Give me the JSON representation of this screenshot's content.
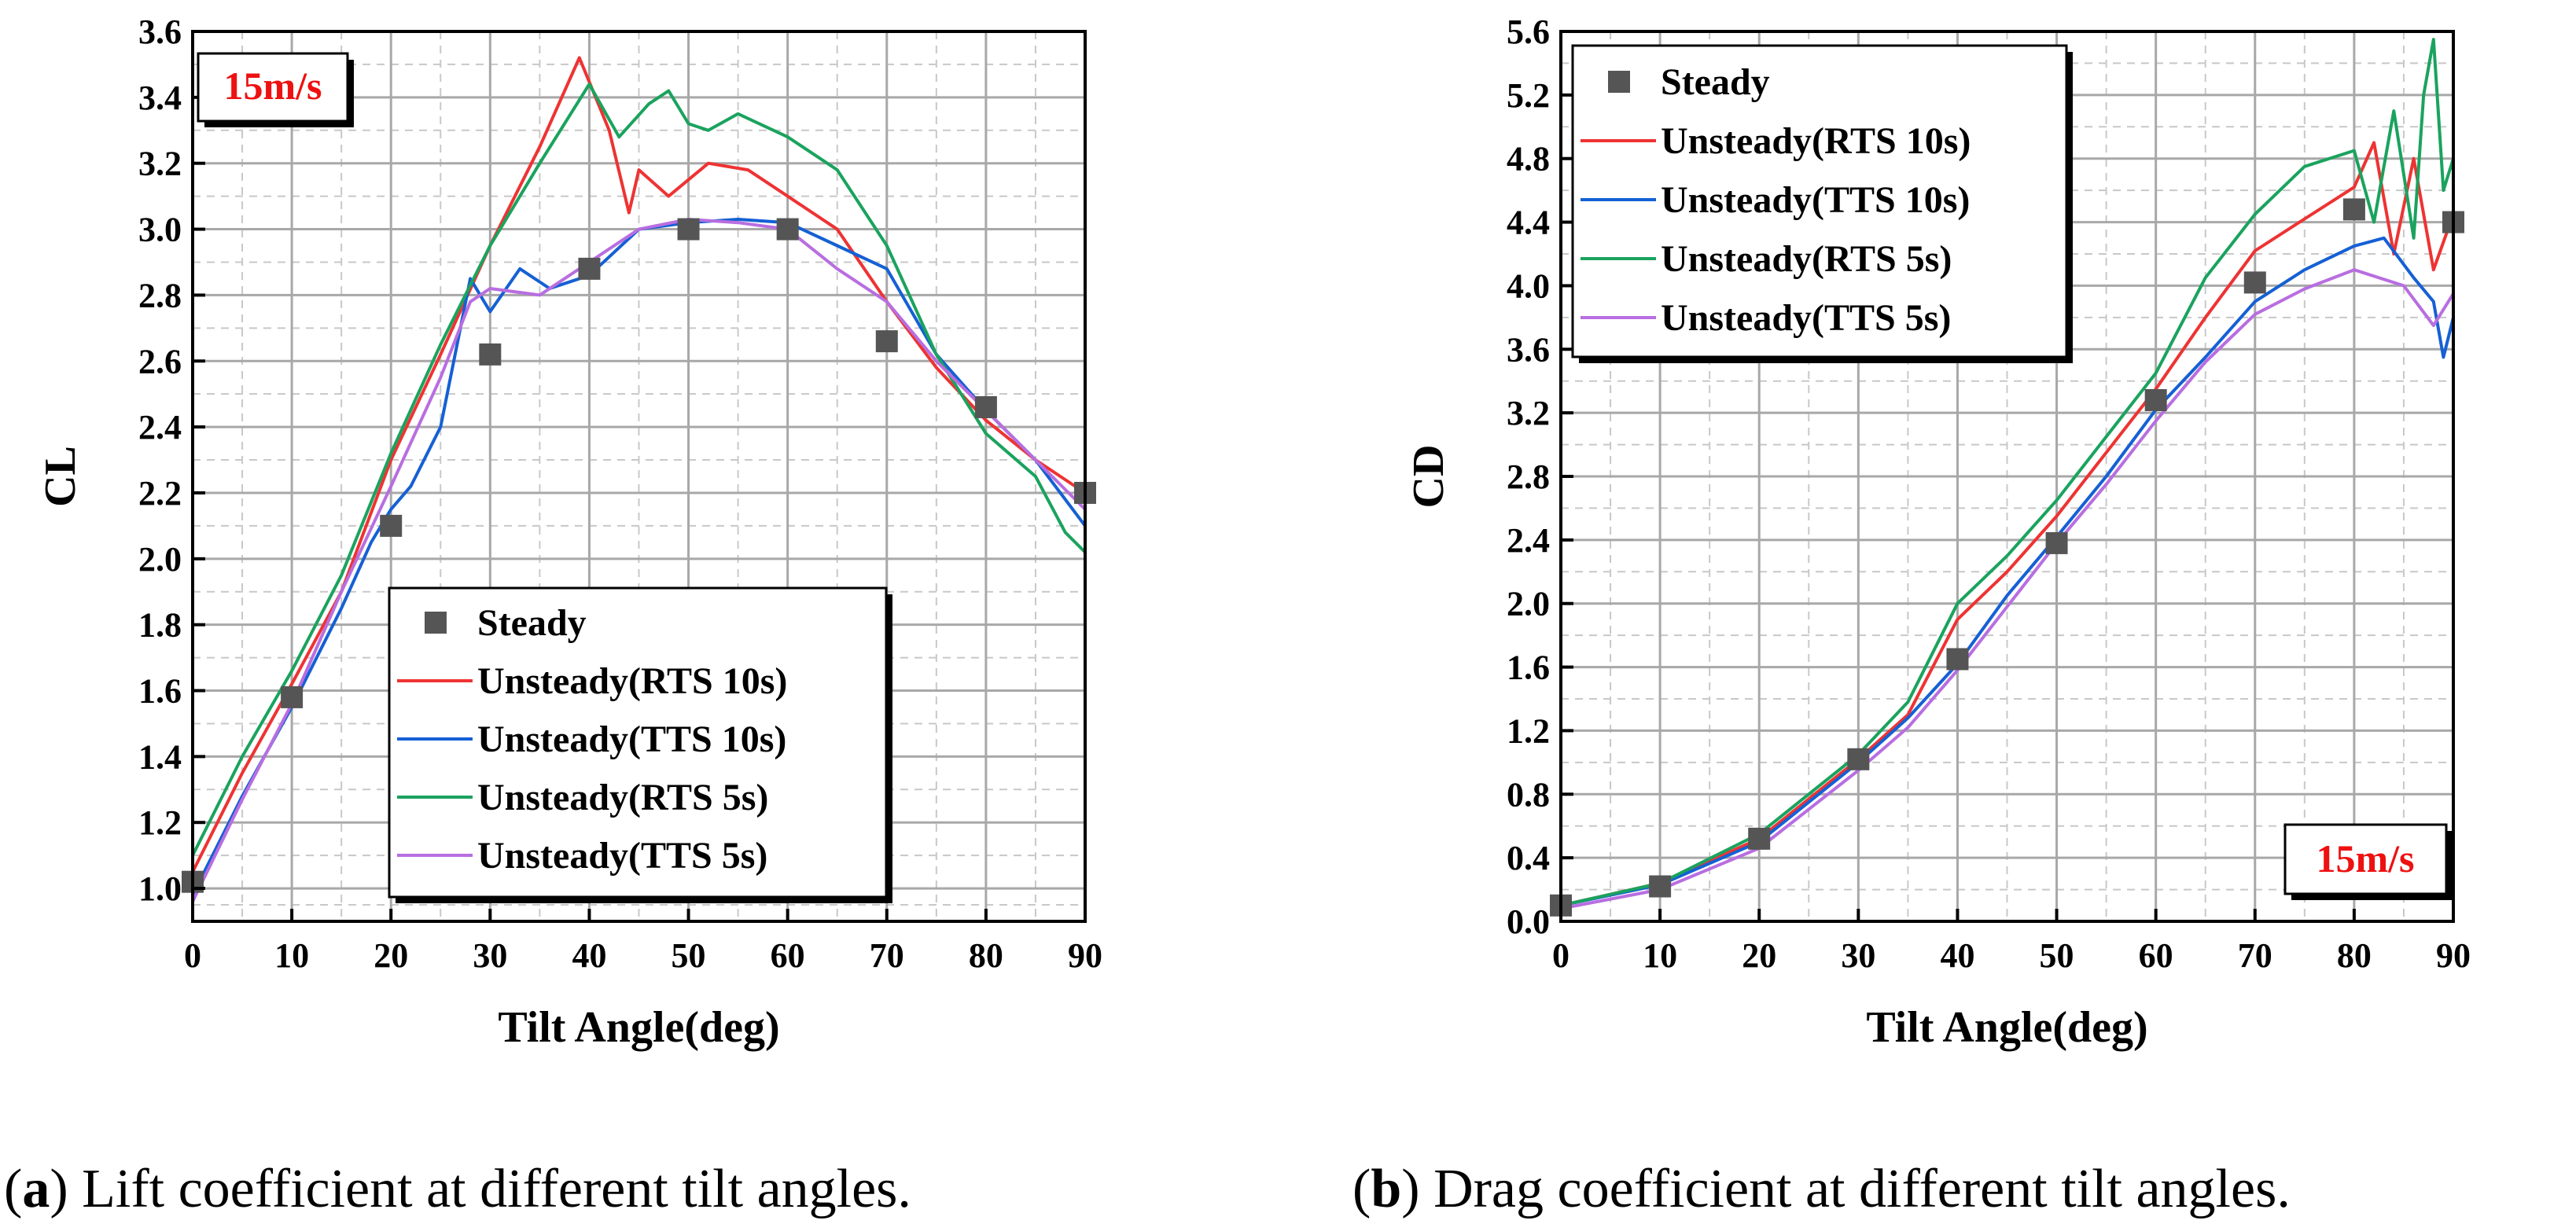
{
  "chart_data": [
    {
      "type": "line",
      "panel": "a",
      "xlabel": "Tilt Angle(deg)",
      "ylabel": "CL",
      "xlim": [
        0,
        90
      ],
      "ylim": [
        0.9,
        3.6
      ],
      "xticks": [
        "0",
        "10",
        "20",
        "30",
        "40",
        "50",
        "60",
        "70",
        "80",
        "90"
      ],
      "yticks": [
        "1.0",
        "1.2",
        "1.4",
        "1.6",
        "1.8",
        "2.0",
        "2.2",
        "2.4",
        "2.6",
        "2.8",
        "3.0",
        "3.2",
        "3.4",
        "3.6"
      ],
      "grid": true,
      "badge": "15m/s",
      "legend_position": "lower-center",
      "caption_letter": "a",
      "caption_text": " Lift coefficient at different tilt angles.",
      "series": [
        {
          "name": "Steady",
          "kind": "marker",
          "color": "#555555",
          "x": [
            0,
            10,
            20,
            30,
            40,
            50,
            60,
            70,
            80,
            90
          ],
          "y": [
            1.02,
            1.58,
            2.1,
            2.62,
            2.88,
            3.0,
            3.0,
            2.66,
            2.46,
            2.2
          ]
        },
        {
          "name": "Unsteady(RTS 10s)",
          "kind": "line",
          "color": "#ee3333",
          "x": [
            0,
            5,
            10,
            15,
            20,
            25,
            30,
            35,
            39,
            42,
            44,
            45,
            48,
            52,
            56,
            60,
            65,
            70,
            75,
            80,
            85,
            90
          ],
          "y": [
            1.05,
            1.35,
            1.62,
            1.9,
            2.3,
            2.62,
            2.95,
            3.25,
            3.52,
            3.3,
            3.05,
            3.18,
            3.1,
            3.2,
            3.18,
            3.1,
            3.0,
            2.78,
            2.58,
            2.42,
            2.3,
            2.2
          ]
        },
        {
          "name": "Unsteady(TTS 10s)",
          "kind": "line",
          "color": "#1560d4",
          "x": [
            0,
            5,
            10,
            15,
            18,
            20,
            22,
            25,
            28,
            30,
            33,
            36,
            40,
            45,
            50,
            55,
            60,
            65,
            70,
            75,
            80,
            85,
            90
          ],
          "y": [
            0.98,
            1.28,
            1.55,
            1.85,
            2.05,
            2.15,
            2.22,
            2.4,
            2.85,
            2.75,
            2.88,
            2.82,
            2.86,
            3.0,
            3.02,
            3.03,
            3.02,
            2.95,
            2.88,
            2.62,
            2.45,
            2.3,
            2.1
          ]
        },
        {
          "name": "Unsteady(RTS 5s)",
          "kind": "line",
          "color": "#1aa35e",
          "x": [
            0,
            5,
            10,
            15,
            20,
            25,
            30,
            35,
            40,
            43,
            46,
            48,
            50,
            52,
            55,
            60,
            65,
            70,
            75,
            80,
            85,
            88,
            90
          ],
          "y": [
            1.1,
            1.4,
            1.66,
            1.95,
            2.32,
            2.65,
            2.95,
            3.2,
            3.44,
            3.28,
            3.38,
            3.42,
            3.32,
            3.3,
            3.35,
            3.28,
            3.18,
            2.95,
            2.62,
            2.38,
            2.25,
            2.08,
            2.02
          ]
        },
        {
          "name": "Unsteady(TTS 5s)",
          "kind": "line",
          "color": "#b86ee0",
          "x": [
            0,
            5,
            10,
            15,
            20,
            25,
            28,
            30,
            35,
            40,
            45,
            50,
            55,
            60,
            65,
            70,
            75,
            80,
            85,
            90
          ],
          "y": [
            0.96,
            1.27,
            1.56,
            1.9,
            2.22,
            2.55,
            2.78,
            2.82,
            2.8,
            2.9,
            3.0,
            3.03,
            3.02,
            3.0,
            2.88,
            2.78,
            2.6,
            2.45,
            2.3,
            2.15
          ]
        }
      ]
    },
    {
      "type": "line",
      "panel": "b",
      "xlabel": "Tilt Angle(deg)",
      "ylabel": "CD",
      "xlim": [
        0,
        90
      ],
      "ylim": [
        0.0,
        5.6
      ],
      "xticks": [
        "0",
        "10",
        "20",
        "30",
        "40",
        "50",
        "60",
        "70",
        "80",
        "90"
      ],
      "yticks": [
        "0.0",
        "0.4",
        "0.8",
        "1.2",
        "1.6",
        "2.0",
        "2.4",
        "2.8",
        "3.2",
        "3.6",
        "4.0",
        "4.4",
        "4.8",
        "5.2",
        "5.6"
      ],
      "grid": true,
      "badge": "15m/s",
      "legend_position": "top-left",
      "caption_letter": "b",
      "caption_text": " Drag coefficient at different tilt angles.",
      "series": [
        {
          "name": "Steady",
          "kind": "marker",
          "color": "#555555",
          "x": [
            0,
            10,
            20,
            30,
            40,
            50,
            60,
            70,
            80,
            90
          ],
          "y": [
            0.1,
            0.22,
            0.52,
            1.02,
            1.65,
            2.38,
            3.28,
            4.02,
            4.48,
            4.4
          ]
        },
        {
          "name": "Unsteady(RTS 10s)",
          "kind": "line",
          "color": "#ee3333",
          "x": [
            0,
            10,
            20,
            30,
            35,
            40,
            45,
            50,
            55,
            60,
            65,
            70,
            75,
            80,
            82,
            84,
            86,
            88,
            90
          ],
          "y": [
            0.1,
            0.24,
            0.52,
            1.02,
            1.3,
            1.9,
            2.2,
            2.55,
            2.95,
            3.35,
            3.8,
            4.22,
            4.42,
            4.62,
            4.9,
            4.2,
            4.8,
            4.1,
            4.45
          ]
        },
        {
          "name": "Unsteady(TTS 10s)",
          "kind": "line",
          "color": "#1560d4",
          "x": [
            0,
            10,
            20,
            30,
            35,
            40,
            45,
            50,
            55,
            60,
            65,
            70,
            75,
            80,
            83,
            86,
            88,
            89,
            90
          ],
          "y": [
            0.1,
            0.23,
            0.5,
            1.0,
            1.28,
            1.62,
            2.05,
            2.42,
            2.8,
            3.22,
            3.55,
            3.9,
            4.1,
            4.25,
            4.3,
            4.05,
            3.9,
            3.55,
            3.8
          ]
        },
        {
          "name": "Unsteady(RTS 5s)",
          "kind": "line",
          "color": "#1aa35e",
          "x": [
            0,
            10,
            20,
            30,
            35,
            40,
            45,
            50,
            55,
            60,
            65,
            70,
            75,
            80,
            82,
            84,
            86,
            87,
            88,
            89,
            90
          ],
          "y": [
            0.1,
            0.24,
            0.55,
            1.05,
            1.38,
            2.0,
            2.3,
            2.65,
            3.05,
            3.45,
            4.05,
            4.45,
            4.75,
            4.85,
            4.4,
            5.1,
            4.3,
            5.2,
            5.55,
            4.6,
            4.8
          ]
        },
        {
          "name": "Unsteady(TTS 5s)",
          "kind": "line",
          "color": "#b86ee0",
          "x": [
            0,
            10,
            20,
            30,
            35,
            40,
            45,
            50,
            55,
            60,
            65,
            70,
            75,
            80,
            85,
            88,
            90
          ],
          "y": [
            0.08,
            0.2,
            0.46,
            0.95,
            1.22,
            1.58,
            1.98,
            2.38,
            2.75,
            3.15,
            3.52,
            3.82,
            3.98,
            4.1,
            4.0,
            3.75,
            3.95
          ]
        }
      ]
    }
  ]
}
